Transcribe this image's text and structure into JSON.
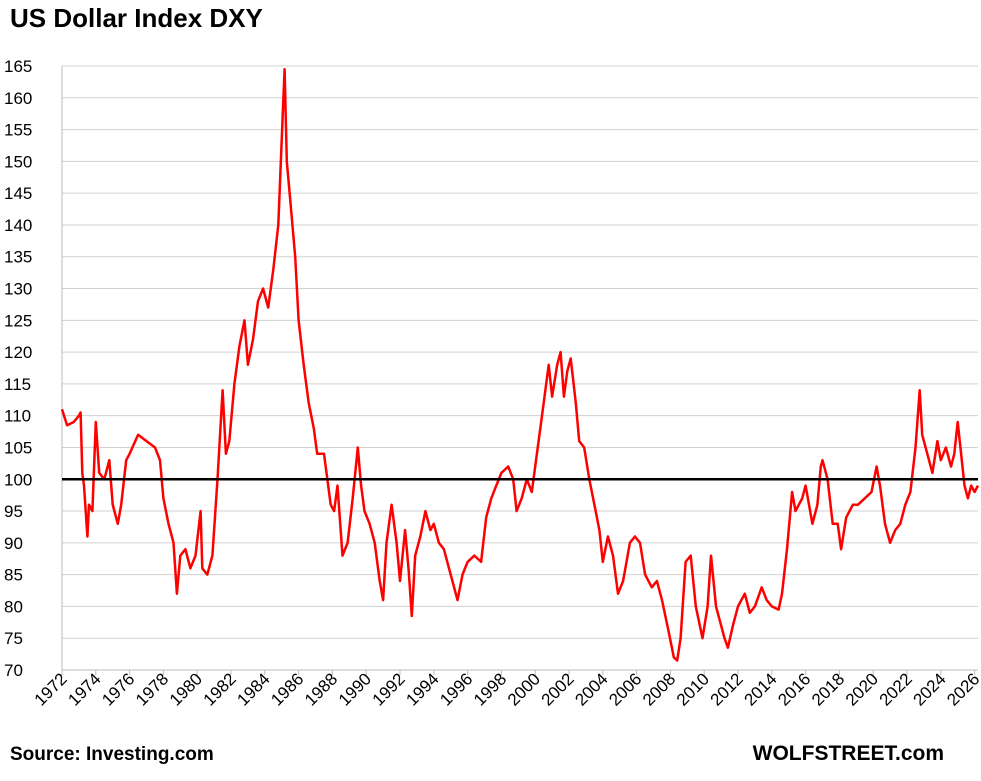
{
  "chart_data": {
    "type": "line",
    "title": "US Dollar Index DXY",
    "source": "Source: Investing.com",
    "brand": "WOLFSTREET.com",
    "reference_line": 100,
    "xlim": [
      1972,
      2026.2
    ],
    "ylim": [
      70,
      165
    ],
    "xticks": [
      1972,
      1974,
      1976,
      1978,
      1980,
      1982,
      1984,
      1986,
      1988,
      1990,
      1992,
      1994,
      1996,
      1998,
      2000,
      2002,
      2004,
      2006,
      2008,
      2010,
      2012,
      2014,
      2016,
      2018,
      2020,
      2022,
      2024,
      2026
    ],
    "yticks": [
      70,
      75,
      80,
      85,
      90,
      95,
      100,
      105,
      110,
      115,
      120,
      125,
      130,
      135,
      140,
      145,
      150,
      155,
      160,
      165
    ],
    "grid": true,
    "series": [
      {
        "name": "DXY",
        "color": "#ff0000",
        "x": [
          1972.0,
          1972.3,
          1972.7,
          1973.0,
          1973.1,
          1973.2,
          1973.3,
          1973.5,
          1973.6,
          1973.8,
          1974.0,
          1974.2,
          1974.5,
          1974.8,
          1975.0,
          1975.3,
          1975.5,
          1975.8,
          1976.0,
          1976.5,
          1977.0,
          1977.5,
          1977.8,
          1978.0,
          1978.3,
          1978.6,
          1978.8,
          1979.0,
          1979.3,
          1979.6,
          1979.9,
          1980.2,
          1980.3,
          1980.6,
          1980.9,
          1981.2,
          1981.5,
          1981.7,
          1981.9,
          1982.2,
          1982.5,
          1982.8,
          1983.0,
          1983.3,
          1983.6,
          1983.9,
          1984.2,
          1984.5,
          1984.8,
          1985.1,
          1985.17,
          1985.3,
          1985.5,
          1985.8,
          1986.0,
          1986.3,
          1986.6,
          1986.9,
          1987.1,
          1987.5,
          1987.9,
          1988.1,
          1988.3,
          1988.6,
          1988.9,
          1989.2,
          1989.5,
          1989.7,
          1989.9,
          1990.2,
          1990.5,
          1990.8,
          1991.0,
          1991.2,
          1991.5,
          1991.8,
          1992.0,
          1992.3,
          1992.5,
          1992.7,
          1992.9,
          1993.2,
          1993.5,
          1993.8,
          1994.0,
          1994.3,
          1994.6,
          1994.9,
          1995.2,
          1995.4,
          1995.7,
          1996.0,
          1996.4,
          1996.8,
          1997.1,
          1997.4,
          1997.7,
          1998.0,
          1998.4,
          1998.7,
          1998.9,
          1999.2,
          1999.5,
          1999.8,
          2000.1,
          2000.4,
          2000.8,
          2001.0,
          2001.3,
          2001.5,
          2001.7,
          2001.9,
          2002.1,
          2002.4,
          2002.6,
          2002.9,
          2003.2,
          2003.5,
          2003.8,
          2004.0,
          2004.3,
          2004.6,
          2004.9,
          2005.2,
          2005.6,
          2005.9,
          2006.2,
          2006.5,
          2006.9,
          2007.2,
          2007.5,
          2007.9,
          2008.2,
          2008.4,
          2008.6,
          2008.9,
          2009.2,
          2009.5,
          2009.9,
          2010.2,
          2010.4,
          2010.7,
          2010.9,
          2011.2,
          2011.4,
          2011.7,
          2012.0,
          2012.4,
          2012.7,
          2013.0,
          2013.4,
          2013.7,
          2014.0,
          2014.4,
          2014.6,
          2014.9,
          2015.2,
          2015.4,
          2015.8,
          2016.0,
          2016.4,
          2016.7,
          2016.9,
          2017.0,
          2017.3,
          2017.6,
          2017.9,
          2018.1,
          2018.4,
          2018.8,
          2019.1,
          2019.5,
          2019.9,
          2020.2,
          2020.4,
          2020.7,
          2021.0,
          2021.3,
          2021.6,
          2021.9,
          2022.2,
          2022.5,
          2022.75,
          2022.9,
          2023.2,
          2023.5,
          2023.8,
          2024.0,
          2024.3,
          2024.6,
          2024.8,
          2025.0,
          2025.2,
          2025.4,
          2025.6,
          2025.8,
          2026.0,
          2026.2
        ],
        "values": [
          111,
          108.5,
          109,
          110,
          110.5,
          101,
          99,
          91,
          96,
          95,
          109,
          101,
          100,
          103,
          96,
          93,
          96,
          103,
          104,
          107,
          106,
          105,
          103,
          97,
          93,
          90,
          82,
          88,
          89,
          86,
          88,
          95,
          86,
          85,
          88,
          100,
          114,
          104,
          106,
          115,
          121,
          125,
          118,
          122,
          128,
          130,
          127,
          133,
          140,
          160,
          164.5,
          150,
          144,
          135,
          125,
          118,
          112,
          108,
          104,
          104,
          96,
          95,
          99,
          88,
          90,
          97,
          105,
          99,
          95,
          93,
          90,
          84,
          81,
          90,
          96,
          90,
          84,
          92,
          86,
          78.5,
          88,
          91,
          95,
          92,
          93,
          90,
          89,
          86,
          83,
          81,
          85,
          87,
          88,
          87,
          94,
          97,
          99,
          101,
          102,
          100,
          95,
          97,
          100,
          98,
          104,
          110,
          118,
          113,
          118,
          120,
          113,
          117,
          119,
          112,
          106,
          105,
          100,
          96,
          92,
          87,
          91,
          88,
          82,
          84,
          90,
          91,
          90,
          85,
          83,
          84,
          81,
          76,
          72,
          71.5,
          75,
          87,
          88,
          80,
          75,
          80,
          88,
          80,
          78,
          75,
          73.5,
          77,
          80,
          82,
          79,
          80,
          83,
          81,
          80,
          79.5,
          82,
          89,
          98,
          95,
          97,
          99,
          93,
          96,
          102,
          103,
          100,
          93,
          93,
          89,
          94,
          96,
          96,
          97,
          98,
          102,
          99,
          93,
          90,
          92,
          93,
          96,
          98,
          105,
          114,
          107,
          104,
          101,
          106,
          103,
          105,
          102,
          104,
          109,
          104,
          99,
          97,
          99,
          98,
          99
        ]
      }
    ]
  }
}
